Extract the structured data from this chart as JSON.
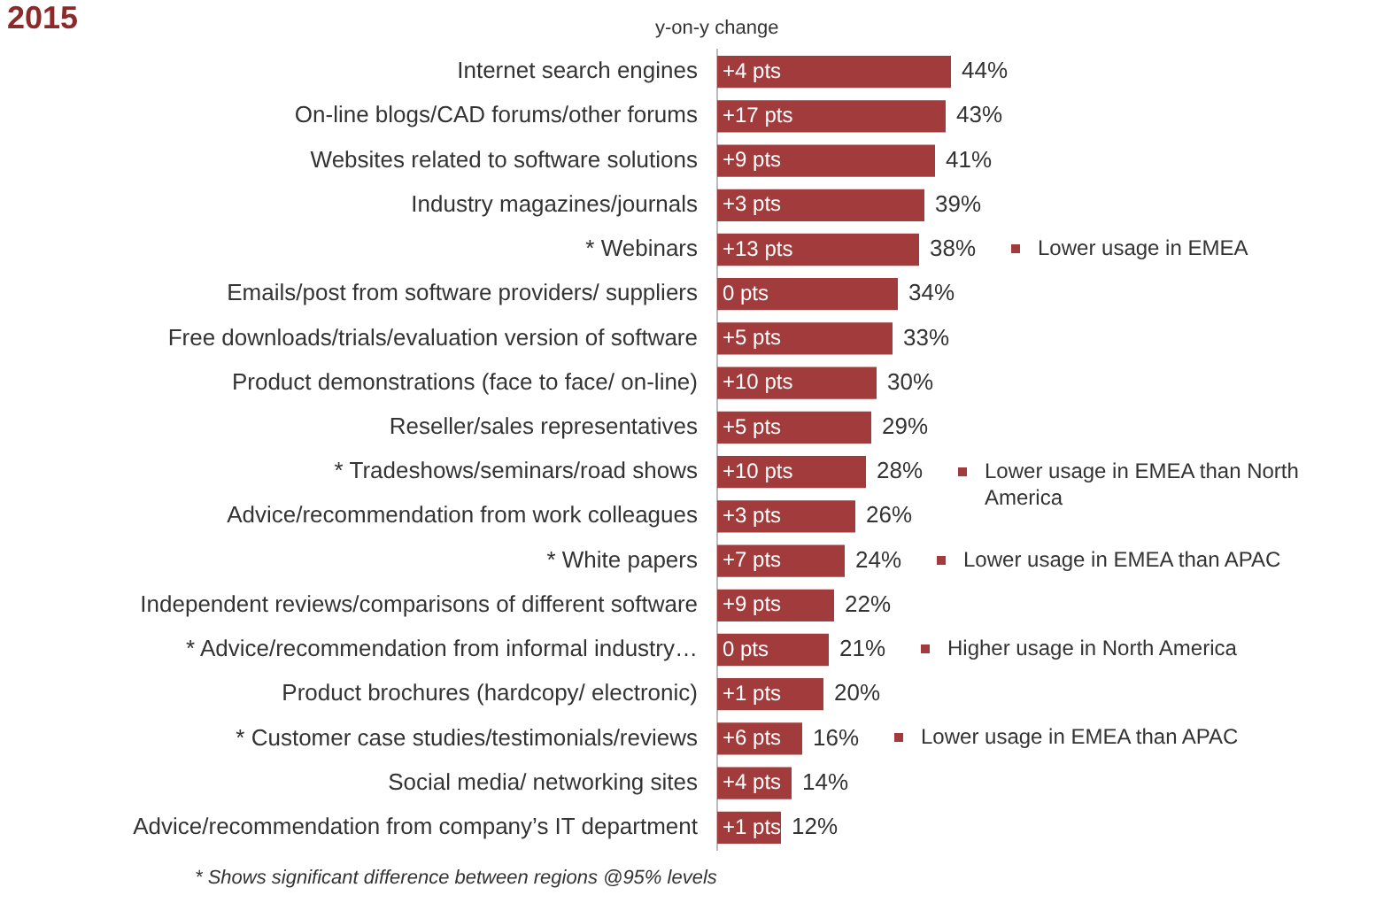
{
  "chart_data": {
    "type": "bar",
    "orientation": "horizontal",
    "title": "2015",
    "categories": [
      "Internet search engines",
      "On-line blogs/CAD forums/other forums",
      "Websites related to software solutions",
      "Industry magazines/journals",
      "* Webinars",
      "Emails/post from software providers/ suppliers",
      "Free downloads/trials/evaluation version of software",
      "Product demonstrations (face to face/ on-line)",
      "Reseller/sales representatives",
      "* Tradeshows/seminars/road shows",
      "Advice/recommendation from work colleagues",
      "* White papers",
      "Independent reviews/comparisons of different software",
      "* Advice/recommendation from informal industry…",
      "Product brochures (hardcopy/ electronic)",
      "* Customer case studies/testimonials/reviews",
      "Social media/ networking sites",
      "Advice/recommendation from company’s IT department"
    ],
    "values": [
      44,
      43,
      41,
      39,
      38,
      34,
      33,
      30,
      29,
      28,
      26,
      24,
      22,
      21,
      20,
      16,
      14,
      12
    ],
    "value_labels": [
      "44%",
      "43%",
      "41%",
      "39%",
      "38%",
      "34%",
      "33%",
      "30%",
      "29%",
      "28%",
      "26%",
      "24%",
      "22%",
      "21%",
      "20%",
      "16%",
      "14%",
      "12%"
    ],
    "color": "#a23c3c",
    "legend": false,
    "annotations": [
      "y-on-y change",
      "* Shows significant difference between regions @95% levels",
      "+4 pts",
      "+17 pts",
      "+9 pts",
      "+3 pts",
      "+13 pts",
      "0 pts",
      "+5 pts",
      "+10 pts",
      "+5 pts",
      "+10 pts",
      "+3 pts",
      "+7 pts",
      "+9 pts",
      "0 pts",
      "+1 pts",
      "+6 pts",
      "+4 pts",
      "+1 pts",
      "Lower usage in EMEA",
      "Lower usage in EMEA than North America",
      "Lower usage in EMEA than APAC",
      "Higher usage in North America",
      "Lower usage in EMEA than APAC"
    ]
  }
}
